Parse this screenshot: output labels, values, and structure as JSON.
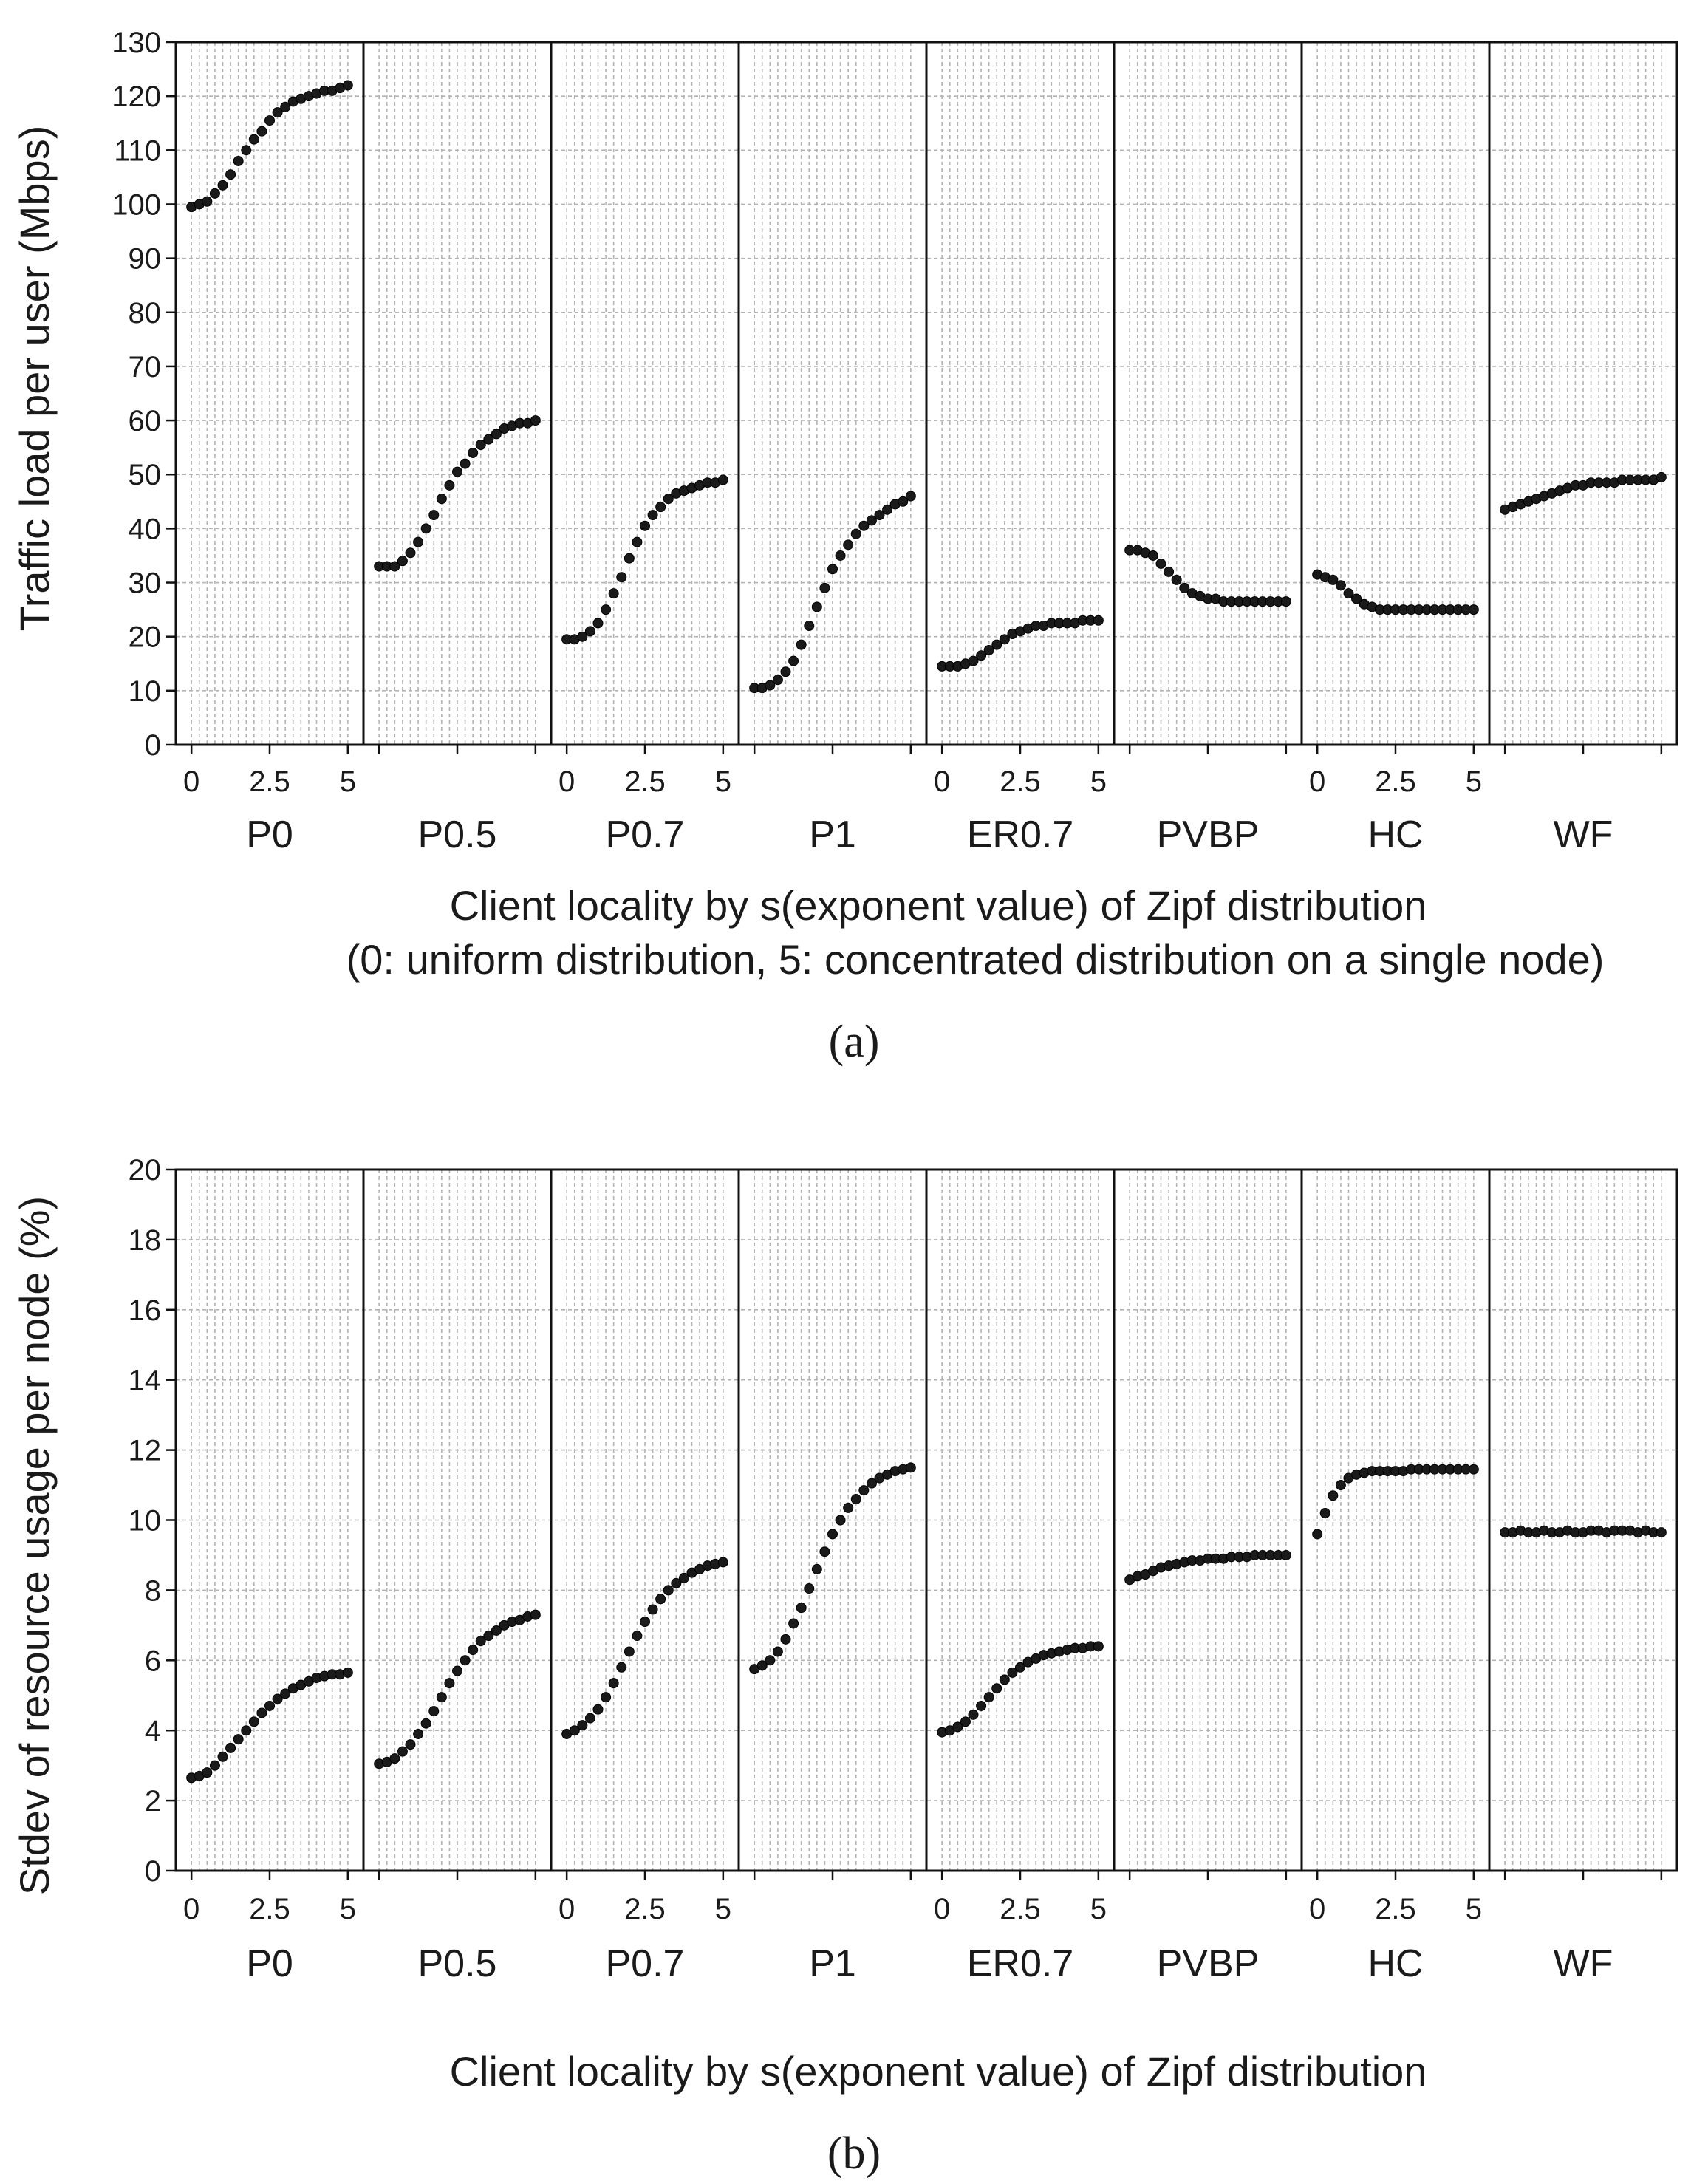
{
  "figure": {
    "captions": [
      "(a)",
      "(b)"
    ],
    "xlabel_line1": "Client locality by s(exponent value) of Zipf distribution",
    "xlabel_line2": "(0: uniform distribution, 5: concentrated distribution on a single node)"
  },
  "chart_data": [
    {
      "type": "scatter",
      "id": "a",
      "caption": "(a)",
      "ylabel": "Traffic load per user (Mbps)",
      "xlabel": "Client locality by s(exponent value) of Zipf distribution",
      "xlabel_note": "(0: uniform distribution, 5: concentrated distribution on a single node)",
      "ylim": [
        0,
        130
      ],
      "yticks": [
        0,
        10,
        20,
        30,
        40,
        50,
        60,
        70,
        80,
        90,
        100,
        110,
        120,
        130
      ],
      "xlim": [
        -0.5,
        5.5
      ],
      "xticks": [
        "0",
        "2.5",
        "5"
      ],
      "x": [
        0,
        0.25,
        0.5,
        0.75,
        1,
        1.25,
        1.5,
        1.75,
        2,
        2.25,
        2.5,
        2.75,
        3,
        3.25,
        3.5,
        3.75,
        4,
        4.25,
        4.5,
        4.75,
        5
      ],
      "grid": true,
      "panels": [
        {
          "name": "P0",
          "show_xticks": true,
          "values": [
            99.5,
            100,
            100.5,
            102,
            103.5,
            105.5,
            108,
            110,
            112,
            113.5,
            115.5,
            117,
            118,
            119,
            119.5,
            120,
            120.5,
            121,
            121,
            121.5,
            122
          ]
        },
        {
          "name": "P0.5",
          "show_xticks": false,
          "values": [
            33,
            33,
            33,
            34,
            35.5,
            37.5,
            40,
            42.5,
            45.5,
            48,
            50.5,
            52,
            54,
            55.5,
            56.5,
            57.5,
            58.5,
            59,
            59.5,
            59.5,
            60
          ]
        },
        {
          "name": "P0.7",
          "show_xticks": true,
          "values": [
            19.5,
            19.5,
            20,
            21,
            22.5,
            25,
            28,
            31,
            34.5,
            37.5,
            40.5,
            42.5,
            44,
            45.5,
            46.5,
            47,
            47.5,
            48,
            48.5,
            48.5,
            49
          ]
        },
        {
          "name": "P1",
          "show_xticks": false,
          "values": [
            10.5,
            10.5,
            11,
            12,
            13.5,
            15.5,
            18.5,
            22,
            25.5,
            29,
            32.5,
            35,
            37,
            39,
            40.5,
            41.5,
            42.5,
            43.5,
            44.5,
            45,
            46
          ]
        },
        {
          "name": "ER0.7",
          "show_xticks": true,
          "values": [
            14.5,
            14.5,
            14.5,
            15,
            15.5,
            16.5,
            17.5,
            18.5,
            19.5,
            20.5,
            21,
            21.5,
            22,
            22,
            22.5,
            22.5,
            22.5,
            22.5,
            23,
            23,
            23
          ]
        },
        {
          "name": "PVBP",
          "show_xticks": false,
          "values": [
            36,
            36,
            35.5,
            35,
            33.5,
            32,
            30.5,
            29,
            28,
            27.5,
            27,
            27,
            26.5,
            26.5,
            26.5,
            26.5,
            26.5,
            26.5,
            26.5,
            26.5,
            26.5
          ]
        },
        {
          "name": "HC",
          "show_xticks": true,
          "values": [
            31.5,
            31,
            30.5,
            29.5,
            28,
            27,
            26,
            25.5,
            25,
            25,
            25,
            25,
            25,
            25,
            25,
            25,
            25,
            25,
            25,
            25,
            25
          ]
        },
        {
          "name": "WF",
          "show_xticks": false,
          "values": [
            43.5,
            44,
            44.5,
            45,
            45.5,
            46,
            46.5,
            47,
            47.5,
            48,
            48,
            48.5,
            48.5,
            48.5,
            48.5,
            49,
            49,
            49,
            49,
            49,
            49.5
          ]
        }
      ]
    },
    {
      "type": "scatter",
      "id": "b",
      "caption": "(b)",
      "ylabel": "Stdev of resource usage per node (%)",
      "xlabel": "Client locality by s(exponent value) of Zipf distribution",
      "ylim": [
        0,
        20
      ],
      "yticks": [
        0,
        2,
        4,
        6,
        8,
        10,
        12,
        14,
        16,
        18,
        20
      ],
      "xlim": [
        -0.5,
        5.5
      ],
      "xticks": [
        "0",
        "2.5",
        "5"
      ],
      "x": [
        0,
        0.25,
        0.5,
        0.75,
        1,
        1.25,
        1.5,
        1.75,
        2,
        2.25,
        2.5,
        2.75,
        3,
        3.25,
        3.5,
        3.75,
        4,
        4.25,
        4.5,
        4.75,
        5
      ],
      "grid": true,
      "panels": [
        {
          "name": "P0",
          "show_xticks": true,
          "values": [
            2.65,
            2.7,
            2.8,
            3.0,
            3.25,
            3.5,
            3.75,
            4.0,
            4.25,
            4.5,
            4.7,
            4.9,
            5.05,
            5.2,
            5.3,
            5.4,
            5.5,
            5.55,
            5.6,
            5.6,
            5.65
          ]
        },
        {
          "name": "P0.5",
          "show_xticks": false,
          "values": [
            3.05,
            3.1,
            3.2,
            3.4,
            3.6,
            3.9,
            4.2,
            4.55,
            4.95,
            5.35,
            5.7,
            6.0,
            6.3,
            6.55,
            6.7,
            6.85,
            7.0,
            7.1,
            7.15,
            7.25,
            7.3
          ]
        },
        {
          "name": "P0.7",
          "show_xticks": true,
          "values": [
            3.9,
            4.0,
            4.15,
            4.35,
            4.6,
            4.95,
            5.35,
            5.8,
            6.25,
            6.7,
            7.1,
            7.45,
            7.75,
            8.0,
            8.2,
            8.35,
            8.5,
            8.6,
            8.7,
            8.75,
            8.8
          ]
        },
        {
          "name": "P1",
          "show_xticks": false,
          "values": [
            5.75,
            5.85,
            6.0,
            6.25,
            6.6,
            7.05,
            7.5,
            8.05,
            8.6,
            9.1,
            9.6,
            10.0,
            10.35,
            10.6,
            10.85,
            11.05,
            11.2,
            11.3,
            11.4,
            11.45,
            11.5
          ]
        },
        {
          "name": "ER0.7",
          "show_xticks": true,
          "values": [
            3.95,
            4.0,
            4.1,
            4.25,
            4.45,
            4.7,
            4.95,
            5.2,
            5.45,
            5.65,
            5.8,
            5.95,
            6.05,
            6.15,
            6.2,
            6.25,
            6.3,
            6.35,
            6.35,
            6.4,
            6.4
          ]
        },
        {
          "name": "PVBP",
          "show_xticks": false,
          "values": [
            8.3,
            8.4,
            8.45,
            8.55,
            8.65,
            8.7,
            8.75,
            8.8,
            8.85,
            8.85,
            8.9,
            8.9,
            8.9,
            8.95,
            8.95,
            8.95,
            9.0,
            9.0,
            9.0,
            9.0,
            9.0
          ]
        },
        {
          "name": "HC",
          "show_xticks": true,
          "values": [
            9.6,
            10.2,
            10.7,
            11.0,
            11.2,
            11.3,
            11.35,
            11.4,
            11.4,
            11.4,
            11.4,
            11.4,
            11.45,
            11.45,
            11.45,
            11.45,
            11.45,
            11.45,
            11.45,
            11.45,
            11.45
          ]
        },
        {
          "name": "WF",
          "show_xticks": false,
          "values": [
            9.65,
            9.65,
            9.7,
            9.65,
            9.65,
            9.7,
            9.65,
            9.65,
            9.7,
            9.65,
            9.65,
            9.7,
            9.7,
            9.65,
            9.7,
            9.7,
            9.7,
            9.65,
            9.7,
            9.65,
            9.65
          ]
        }
      ]
    }
  ]
}
